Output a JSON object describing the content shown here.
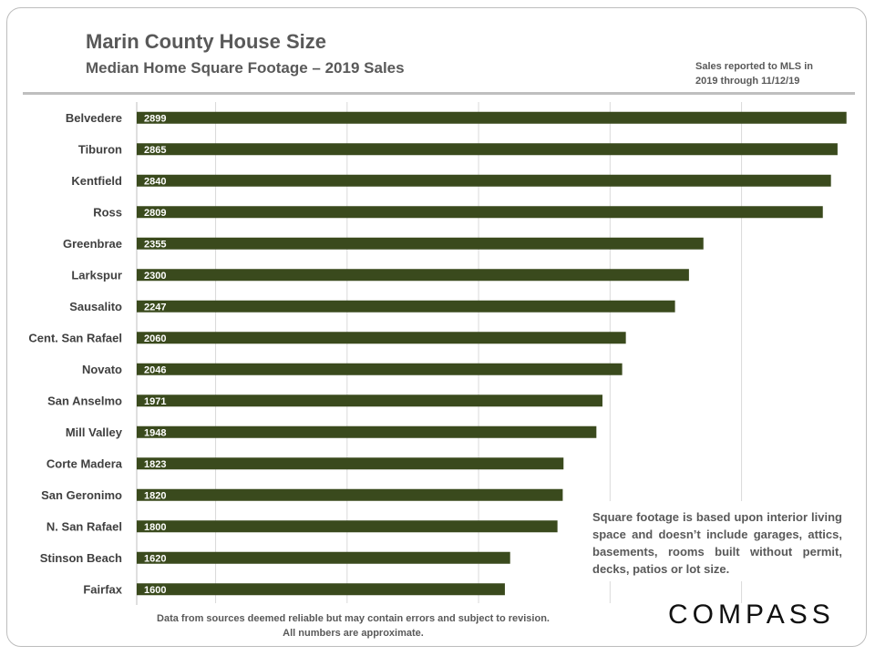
{
  "title": "Marin County House Size",
  "subtitle": "Median Home Square Footage – 2019 Sales",
  "source_note": [
    "Sales reported to MLS in",
    "2019 through 11/12/19"
  ],
  "explanation": "Square footage is based upon interior living space and doesn’t include garages, attics, basements, rooms built without permit, decks, patios or lot size.",
  "disclaimer": [
    "Data from sources deemed reliable but  may contain errors and subject to revision.",
    "All numbers are approximate."
  ],
  "logo": "COMPASS",
  "colors": {
    "bar": "#3a4a1d",
    "label": "#404040",
    "grid": "#d9d9d9",
    "value_text": "#ffffff"
  },
  "chart_data": {
    "type": "bar",
    "orientation": "horizontal",
    "title": "Marin County House Size",
    "categories": [
      "Belvedere",
      "Tiburon",
      "Kentfield",
      "Ross",
      "Greenbrae",
      "Larkspur",
      "Sausalito",
      "Cent. San Rafael",
      "Novato",
      "San Anselmo",
      "Mill Valley",
      "Corte Madera",
      "San Geronimo",
      "N. San Rafael",
      "Stinson Beach",
      "Fairfax"
    ],
    "values": [
      2899,
      2865,
      2840,
      2809,
      2355,
      2300,
      2247,
      2060,
      2046,
      1971,
      1948,
      1823,
      1820,
      1800,
      1620,
      1600
    ],
    "xlim": [
      200,
      2900
    ],
    "gridlines": [
      500,
      1000,
      1500,
      2000,
      2500
    ],
    "xlabel": "",
    "ylabel": ""
  }
}
